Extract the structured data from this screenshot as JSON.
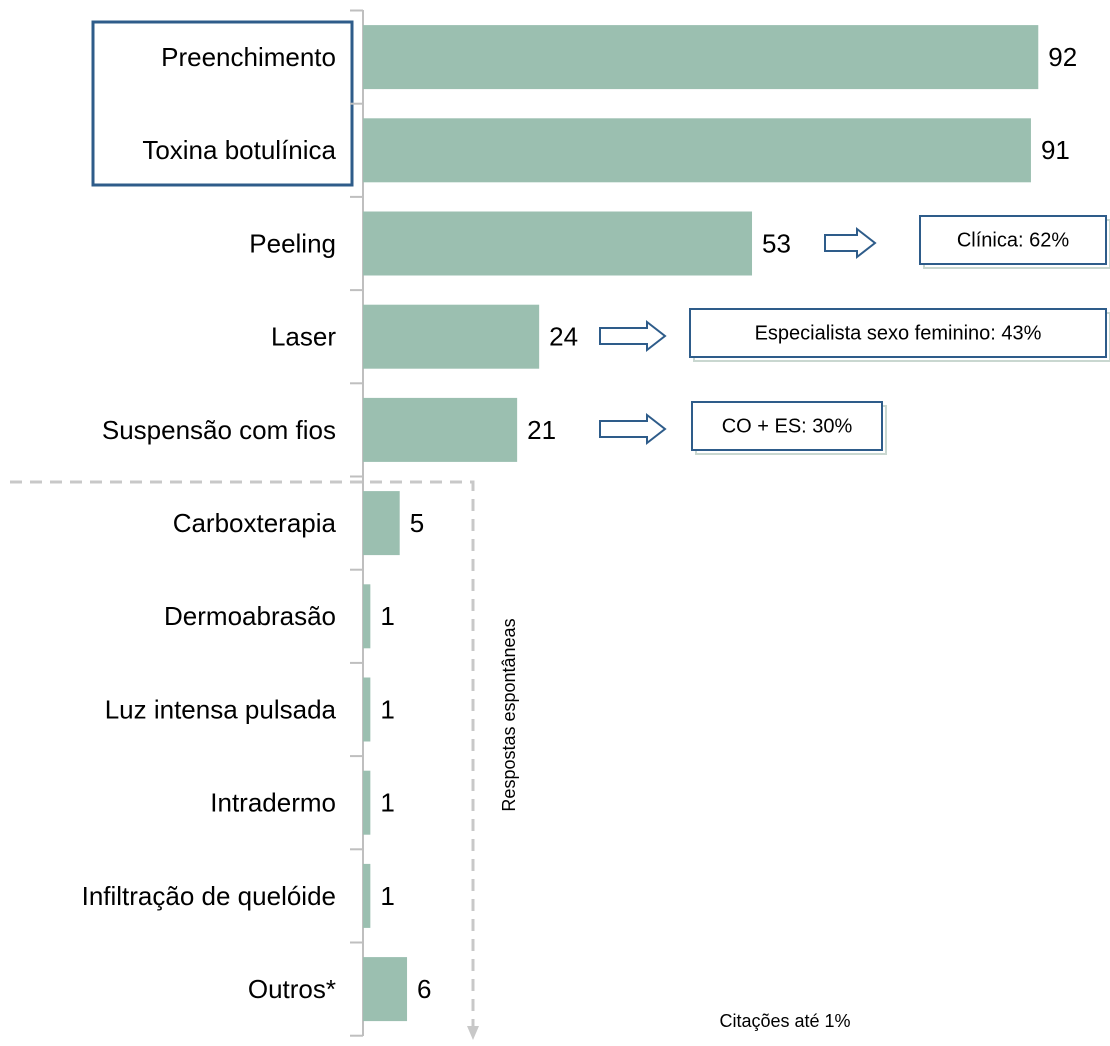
{
  "chart_data": {
    "type": "bar",
    "orientation": "horizontal",
    "categories": [
      "Preenchimento",
      "Toxina botulínica",
      "Peeling",
      "Laser",
      "Suspensão com fios",
      "Carboxterapia",
      "Dermoabrasão",
      "Luz intensa pulsada",
      "Intradermo",
      "Infiltração de quelóide",
      "Outros*"
    ],
    "values": [
      92,
      91,
      53,
      24,
      21,
      5,
      1,
      1,
      1,
      1,
      6
    ],
    "color": "#9bbfb0",
    "annotations": [
      "Clínica: 62%",
      "Especialista sexo feminino: 43%",
      "CO + ES: 30%"
    ],
    "section_label": "Respostas espontâneas",
    "footnote": "Citações até 1%"
  }
}
